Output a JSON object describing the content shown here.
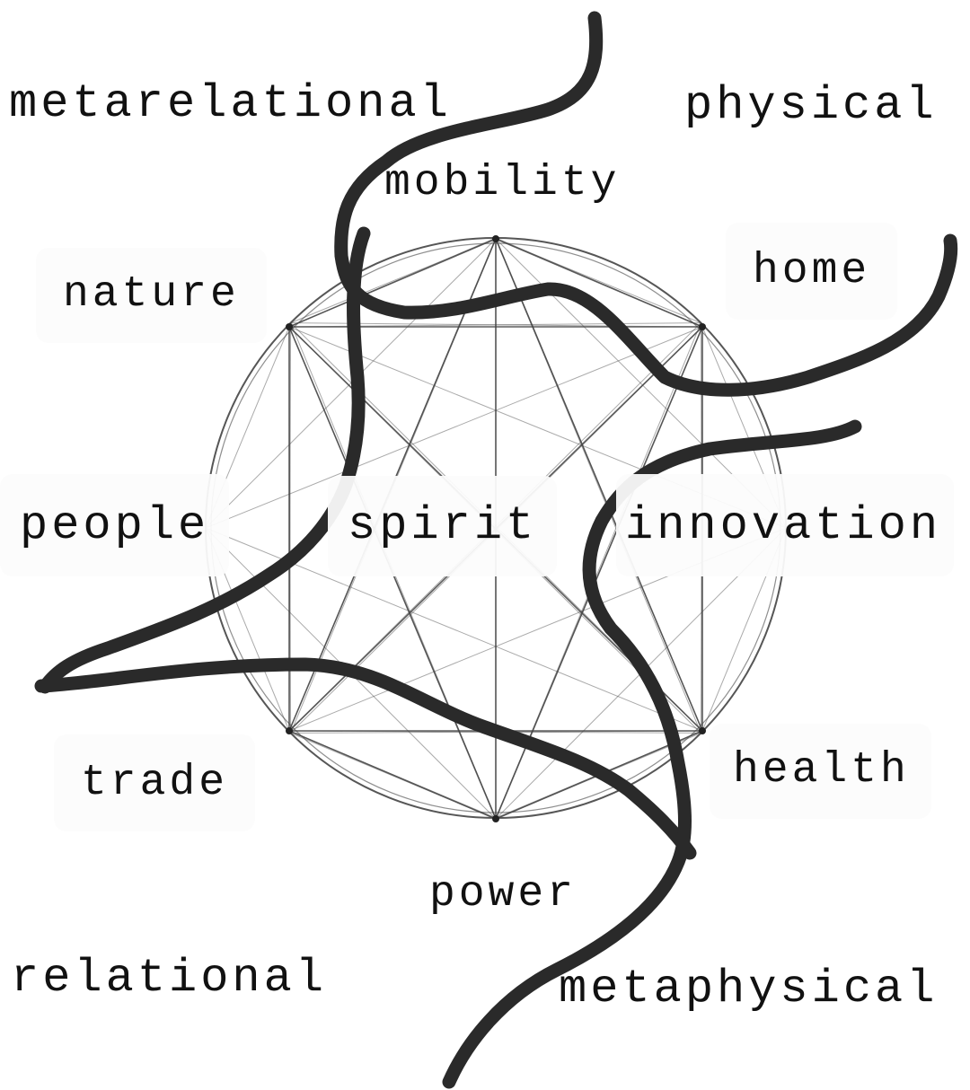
{
  "colors": {
    "background": "#ffffff",
    "geometry_line": "#444444",
    "stroke": "#2a2a2a",
    "text": "#111111"
  },
  "labels": {
    "metarelational": "metarelational",
    "physical": "physical",
    "mobility": "mobility",
    "nature": "nature",
    "home": "home",
    "people": "people",
    "spirit": "spirit",
    "innovation": "innovation",
    "trade": "trade",
    "health": "health",
    "power": "power",
    "relational": "relational",
    "metaphysical": "metaphysical"
  }
}
